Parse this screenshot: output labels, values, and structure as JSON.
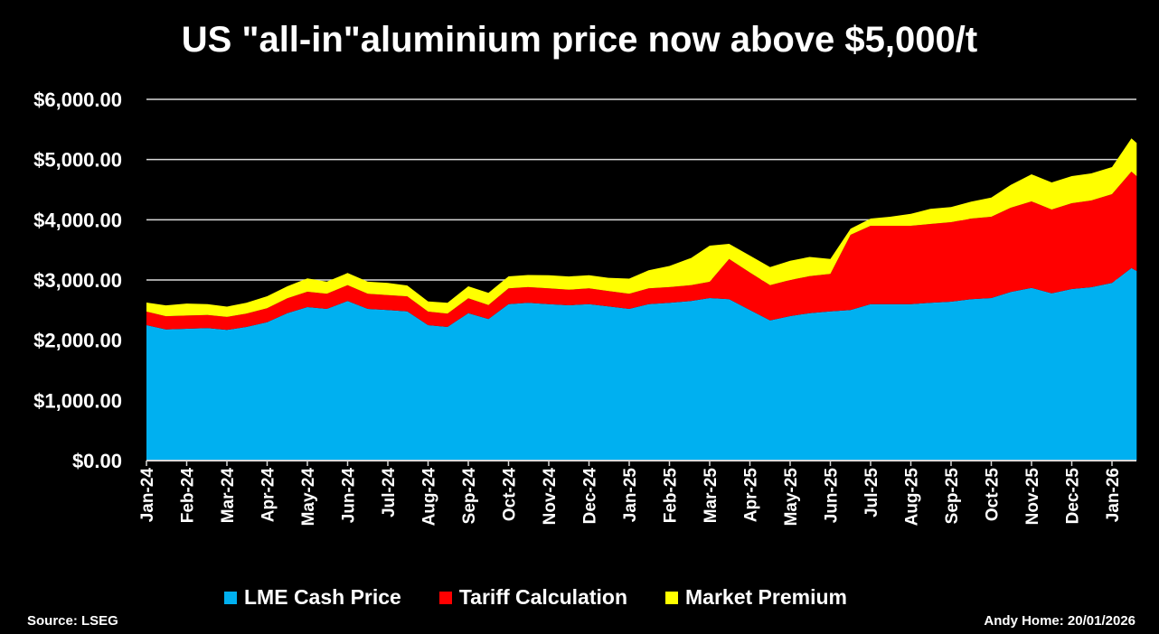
{
  "title": "US \"all-in\"aluminium price now above $5,000/t",
  "source": "Source: LSEG",
  "credit": "Andy Home: 20/01/2026",
  "colors": {
    "lme": "#00B0F0",
    "tariff": "#FF0000",
    "premium": "#FFFF00"
  },
  "chart_data": {
    "type": "area",
    "stacked": true,
    "title": "US \"all-in\"aluminium price now above $5,000/t",
    "xlabel": "",
    "ylabel": "",
    "ylim": [
      0,
      6000
    ],
    "yticks": [
      "$0.00",
      "$1,000.00",
      "$2,000.00",
      "$3,000.00",
      "$4,000.00",
      "$5,000.00",
      "$6,000.00"
    ],
    "xticks": [
      "Jan-24",
      "Feb-24",
      "Mar-24",
      "Apr-24",
      "May-24",
      "Jun-24",
      "Jul-24",
      "Aug-24",
      "Sep-24",
      "Oct-24",
      "Nov-24",
      "Dec-24",
      "Jan-25",
      "Feb-25",
      "Mar-25",
      "Apr-25",
      "May-25",
      "Jun-25",
      "Jul-25",
      "Aug-25",
      "Sep-25",
      "Oct-25",
      "Nov-25",
      "Dec-25",
      "Jan-26"
    ],
    "grid": true,
    "legend_position": "bottom",
    "x": [
      "2024-01-01",
      "2024-01-16",
      "2024-02-01",
      "2024-02-16",
      "2024-03-01",
      "2024-03-16",
      "2024-04-01",
      "2024-04-16",
      "2024-05-01",
      "2024-05-16",
      "2024-06-01",
      "2024-06-16",
      "2024-07-01",
      "2024-07-16",
      "2024-08-01",
      "2024-08-16",
      "2024-09-01",
      "2024-09-16",
      "2024-10-01",
      "2024-10-16",
      "2024-11-01",
      "2024-11-16",
      "2024-12-01",
      "2024-12-16",
      "2025-01-01",
      "2025-01-16",
      "2025-02-01",
      "2025-02-16",
      "2025-03-01",
      "2025-03-16",
      "2025-04-01",
      "2025-04-16",
      "2025-05-01",
      "2025-05-16",
      "2025-06-01",
      "2025-06-16",
      "2025-07-01",
      "2025-07-16",
      "2025-08-01",
      "2025-08-16",
      "2025-09-01",
      "2025-09-16",
      "2025-10-01",
      "2025-10-16",
      "2025-11-01",
      "2025-11-16",
      "2025-12-01",
      "2025-12-16",
      "2026-01-01",
      "2026-01-16",
      "2026-01-20"
    ],
    "series": [
      {
        "name": "LME Cash Price",
        "values": [
          2250,
          2180,
          2190,
          2200,
          2170,
          2220,
          2300,
          2450,
          2550,
          2520,
          2650,
          2520,
          2500,
          2480,
          2250,
          2220,
          2450,
          2350,
          2600,
          2620,
          2600,
          2580,
          2600,
          2560,
          2520,
          2600,
          2620,
          2650,
          2700,
          2680,
          2500,
          2330,
          2400,
          2450,
          2480,
          2500,
          2600,
          2600,
          2600,
          2620,
          2640,
          2680,
          2700,
          2800,
          2870,
          2780,
          2850,
          2880,
          2950,
          3200,
          3150
        ]
      },
      {
        "name": "Tariff Calculation",
        "values": [
          225,
          218,
          219,
          220,
          217,
          222,
          230,
          245,
          255,
          252,
          265,
          252,
          250,
          248,
          225,
          222,
          245,
          235,
          260,
          262,
          260,
          258,
          260,
          256,
          252,
          260,
          262,
          265,
          270,
          670,
          625,
          583,
          600,
          613,
          620,
          1250,
          1300,
          1300,
          1300,
          1310,
          1320,
          1340,
          1350,
          1400,
          1435,
          1390,
          1425,
          1440,
          1475,
          1600,
          1575
        ]
      },
      {
        "name": "Market Premium",
        "values": [
          150,
          180,
          200,
          180,
          170,
          180,
          200,
          200,
          220,
          200,
          200,
          200,
          200,
          180,
          170,
          180,
          200,
          200,
          200,
          200,
          220,
          220,
          220,
          220,
          250,
          300,
          350,
          450,
          600,
          250,
          280,
          300,
          320,
          320,
          250,
          100,
          120,
          150,
          200,
          250,
          250,
          280,
          320,
          380,
          450,
          450,
          450,
          450,
          450,
          550,
          550
        ]
      }
    ]
  }
}
